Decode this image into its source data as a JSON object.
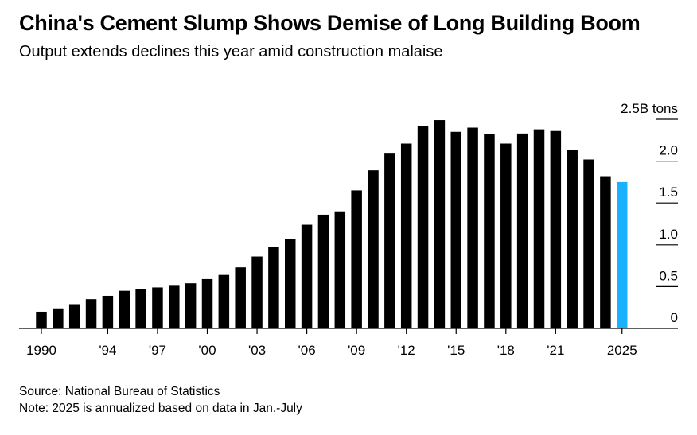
{
  "title": "China's Cement Slump Shows Demise of Long Building Boom",
  "subtitle": "Output extends declines this year amid construction malaise",
  "source": "Source: National Bureau of Statistics",
  "note": "Note: 2025 is annualized based on data in Jan.-July",
  "colors": {
    "bar": "#000000",
    "highlight": "#1ab2ff",
    "axis": "#000000"
  },
  "chart_data": {
    "type": "bar",
    "unit_label": "2.5B tons",
    "x": [
      1990,
      1991,
      1992,
      1993,
      1994,
      1995,
      1996,
      1997,
      1998,
      1999,
      2000,
      2001,
      2002,
      2003,
      2004,
      2005,
      2006,
      2007,
      2008,
      2009,
      2010,
      2011,
      2012,
      2013,
      2014,
      2015,
      2016,
      2017,
      2018,
      2019,
      2020,
      2021,
      2022,
      2023,
      2024,
      2025
    ],
    "values": [
      0.2,
      0.24,
      0.29,
      0.35,
      0.39,
      0.45,
      0.47,
      0.49,
      0.51,
      0.54,
      0.59,
      0.64,
      0.73,
      0.86,
      0.97,
      1.07,
      1.24,
      1.36,
      1.4,
      1.65,
      1.89,
      2.09,
      2.21,
      2.42,
      2.49,
      2.35,
      2.4,
      2.32,
      2.21,
      2.33,
      2.38,
      2.36,
      2.13,
      2.02,
      1.82,
      1.75
    ],
    "highlight_index": 35,
    "ylim": [
      0,
      2.5
    ],
    "y_ticks": [
      0,
      0.5,
      1.0,
      1.5,
      2.0,
      2.5
    ],
    "y_tick_labels": [
      "0",
      "0.5",
      "1.0",
      "1.5",
      "2.0",
      "2.5B tons"
    ],
    "x_tick_years": [
      1990,
      1994,
      1997,
      2000,
      2003,
      2006,
      2009,
      2012,
      2015,
      2018,
      2021,
      2025
    ],
    "x_tick_labels": [
      "1990",
      "'94",
      "'97",
      "'00",
      "'03",
      "'06",
      "'09",
      "'12",
      "'15",
      "'18",
      "'21",
      "2025"
    ],
    "grid": false,
    "legend": "none"
  }
}
